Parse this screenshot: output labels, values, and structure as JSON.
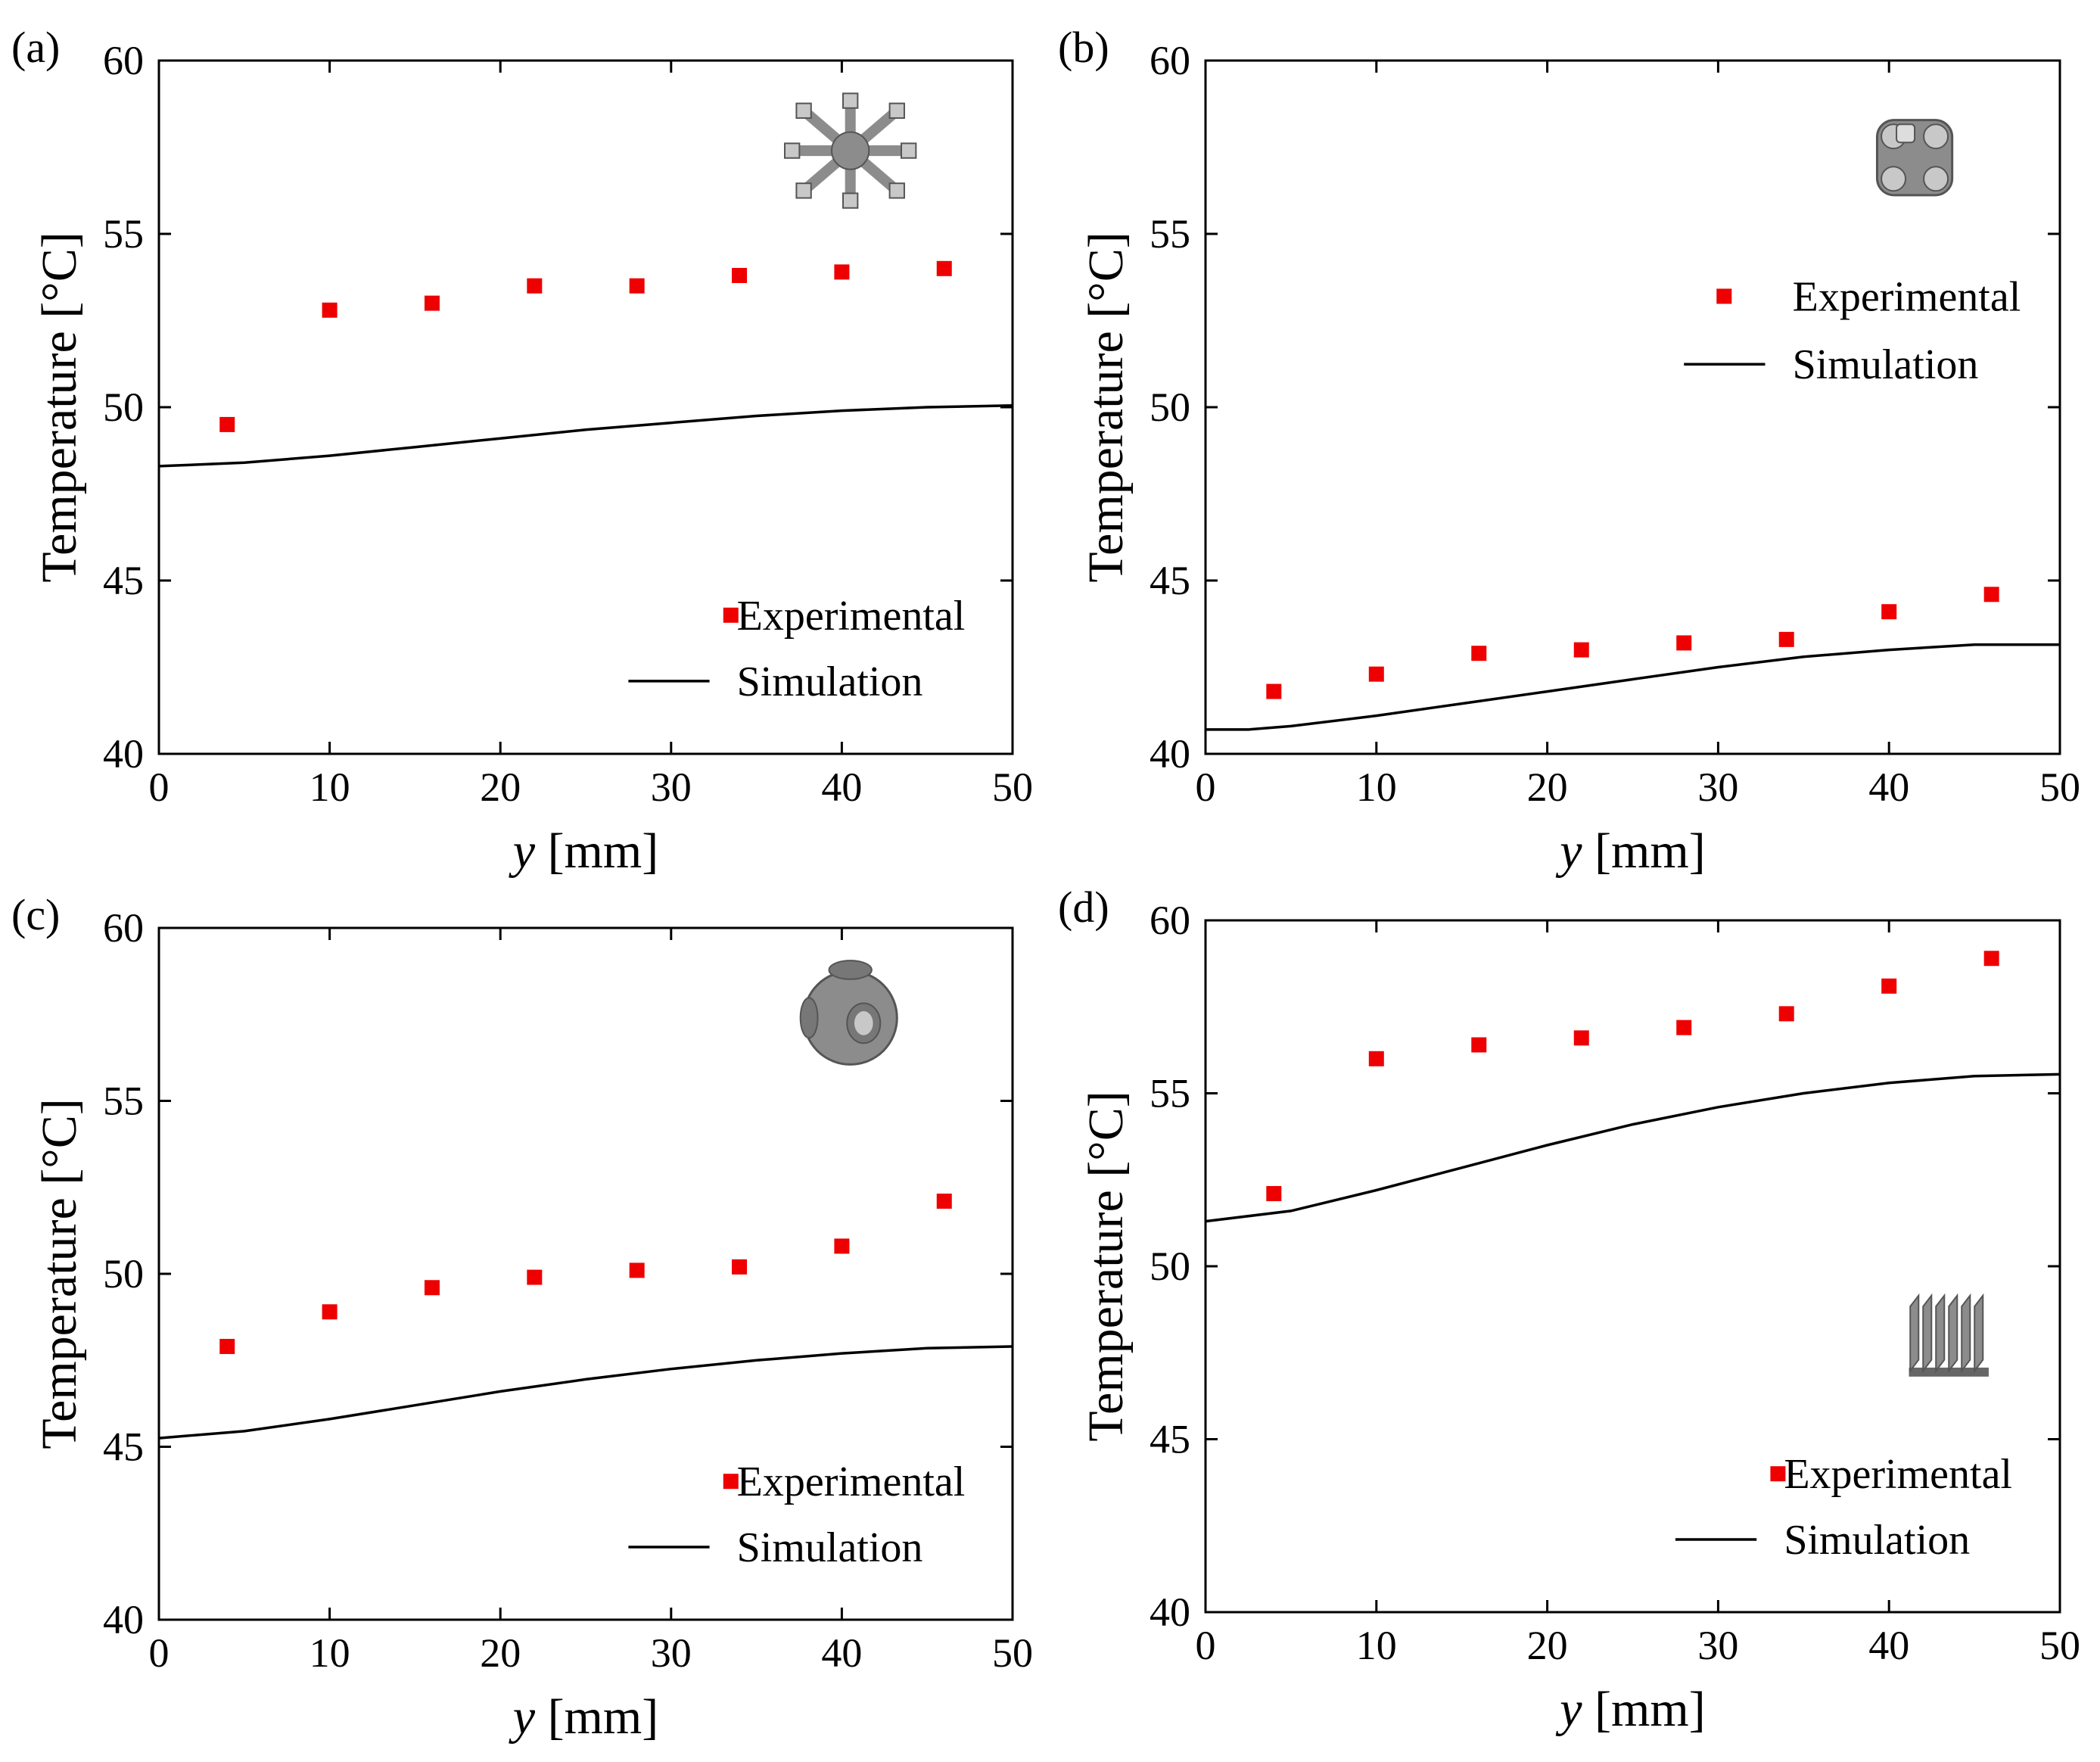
{
  "chart_data": [
    {
      "id": "a",
      "type": "scatter",
      "panel_label": "(a)",
      "xlabel_var": "y",
      "xlabel_unit": " [mm]",
      "ylabel": "Temperature [°C]",
      "xlim": [
        0,
        50
      ],
      "ylim": [
        40,
        60
      ],
      "xticks": [
        0,
        10,
        20,
        30,
        40,
        50
      ],
      "yticks": [
        40,
        45,
        50,
        55,
        60
      ],
      "legend_position": "bottom-right",
      "inset_icon": "gyroid-strut-lattice-icon",
      "series": [
        {
          "name": "Experimental",
          "style": "square-marker",
          "color": "#ee0000",
          "x": [
            4,
            10,
            16,
            22,
            28,
            34,
            40,
            46
          ],
          "y": [
            49.5,
            52.8,
            53.0,
            53.5,
            53.5,
            53.8,
            53.9,
            54.0
          ]
        },
        {
          "name": "Simulation",
          "style": "line",
          "color": "#000000",
          "x": [
            0,
            5,
            10,
            15,
            20,
            25,
            30,
            35,
            40,
            45,
            50
          ],
          "y": [
            48.3,
            48.4,
            48.6,
            48.85,
            49.1,
            49.35,
            49.55,
            49.75,
            49.9,
            50.0,
            50.05
          ]
        }
      ]
    },
    {
      "id": "b",
      "type": "scatter",
      "panel_label": "(b)",
      "xlabel_var": "y",
      "xlabel_unit": " [mm]",
      "ylabel": "Temperature [°C]",
      "xlim": [
        0,
        50
      ],
      "ylim": [
        40,
        60
      ],
      "xticks": [
        0,
        10,
        20,
        30,
        40,
        50
      ],
      "yticks": [
        40,
        45,
        50,
        55,
        60
      ],
      "legend_position": "top-right",
      "inset_icon": "tpms-lattice-icon",
      "series": [
        {
          "name": "Experimental",
          "style": "square-marker",
          "color": "#ee0000",
          "x": [
            4,
            10,
            16,
            22,
            28,
            34,
            40,
            46
          ],
          "y": [
            41.8,
            42.3,
            42.9,
            43.0,
            43.2,
            43.3,
            44.1,
            44.6
          ]
        },
        {
          "name": "Simulation",
          "style": "line",
          "color": "#000000",
          "x": [
            0,
            2.5,
            5,
            10,
            15,
            20,
            25,
            30,
            35,
            40,
            45,
            50
          ],
          "y": [
            40.7,
            40.7,
            40.8,
            41.1,
            41.45,
            41.8,
            42.15,
            42.5,
            42.8,
            43.0,
            43.15,
            43.15
          ]
        }
      ]
    },
    {
      "id": "c",
      "type": "scatter",
      "panel_label": "(c)",
      "xlabel_var": "y",
      "xlabel_unit": " [mm]",
      "ylabel": "Temperature [°C]",
      "xlim": [
        0,
        50
      ],
      "ylim": [
        40,
        60
      ],
      "xticks": [
        0,
        10,
        20,
        30,
        40,
        50
      ],
      "yticks": [
        40,
        45,
        50,
        55,
        60
      ],
      "legend_position": "bottom-right",
      "inset_icon": "schwarz-primitive-lattice-icon",
      "series": [
        {
          "name": "Experimental",
          "style": "square-marker",
          "color": "#ee0000",
          "x": [
            4,
            10,
            16,
            22,
            28,
            34,
            40,
            46
          ],
          "y": [
            47.9,
            48.9,
            49.6,
            49.9,
            50.1,
            50.2,
            50.8,
            52.1
          ]
        },
        {
          "name": "Simulation",
          "style": "line",
          "color": "#000000",
          "x": [
            0,
            5,
            10,
            15,
            20,
            25,
            30,
            35,
            40,
            45,
            50
          ],
          "y": [
            45.25,
            45.45,
            45.8,
            46.2,
            46.6,
            46.95,
            47.25,
            47.5,
            47.7,
            47.85,
            47.9
          ]
        }
      ]
    },
    {
      "id": "d",
      "type": "scatter",
      "panel_label": "(d)",
      "xlabel_var": "y",
      "xlabel_unit": " [mm]",
      "ylabel": "Temperature [°C]",
      "xlim": [
        0,
        50
      ],
      "ylim": [
        40,
        60
      ],
      "xticks": [
        0,
        10,
        20,
        30,
        40,
        50
      ],
      "yticks": [
        40,
        45,
        50,
        55,
        60
      ],
      "legend_position": "bottom-right",
      "inset_icon": "plate-fin-heat-sink-icon",
      "series": [
        {
          "name": "Experimental",
          "style": "square-marker",
          "color": "#ee0000",
          "x": [
            4,
            10,
            16,
            22,
            28,
            34,
            40,
            46
          ],
          "y": [
            52.1,
            56.0,
            56.4,
            56.6,
            56.9,
            57.3,
            58.1,
            58.9
          ]
        },
        {
          "name": "Simulation",
          "style": "line",
          "color": "#000000",
          "x": [
            0,
            5,
            10,
            15,
            20,
            25,
            30,
            35,
            40,
            45,
            50
          ],
          "y": [
            51.3,
            51.6,
            52.2,
            52.85,
            53.5,
            54.1,
            54.6,
            55.0,
            55.3,
            55.5,
            55.55
          ]
        }
      ]
    }
  ]
}
